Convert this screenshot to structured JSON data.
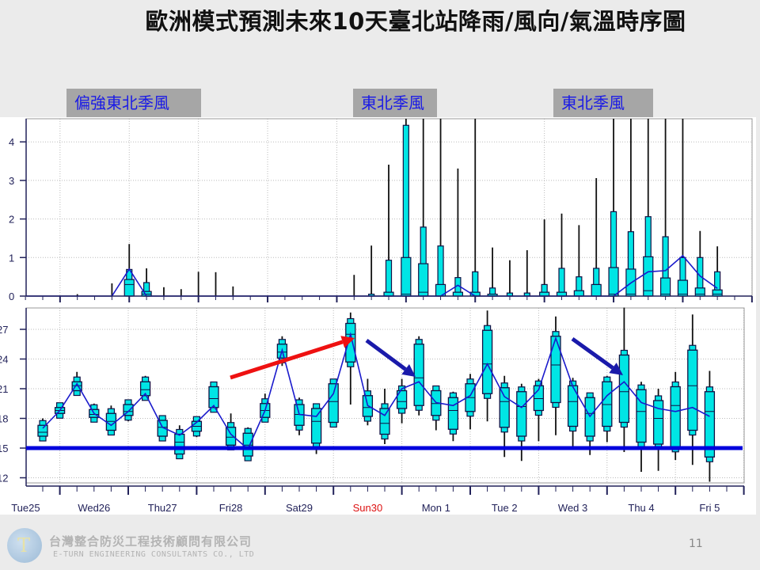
{
  "title": "歐洲模式預測未來10天臺北站降雨/風向/氣溫時序圖",
  "annotations": {
    "wind_labels": [
      "偏強東北季風",
      "東北季風",
      "東北季風"
    ]
  },
  "footer": {
    "company_cn": "台灣整合防災工程技術顧問有限公司",
    "company_en": "E-TURN ENGINEERING CONSULTANTS CO., LTD",
    "page_number": "11"
  },
  "colors": {
    "box_fill": "#00e5e5",
    "mean_line": "#1a1acc",
    "threshold_line": "#0000dd",
    "warming_arrow": "#ee1111",
    "cooling_arrow": "#1a1aaa",
    "highlight_day": "#dd1111"
  },
  "chart_data": [
    {
      "type": "box",
      "ylim": [
        0,
        4.6
      ],
      "yticks": [
        "0",
        "1",
        "2",
        "3",
        "4"
      ],
      "grid": true,
      "x_ticks": [
        "Tue25",
        "Wed26",
        "Thu27",
        "Fri28",
        "Sat29",
        "Sun30",
        "Mon 1",
        "Tue 2",
        "Wed 3",
        "Thu 4",
        "Fri 5"
      ],
      "max": [
        null,
        null,
        0.05,
        null,
        0.33,
        1.35,
        0.72,
        0.23,
        0.18,
        0.63,
        0.62,
        0.25,
        null,
        null,
        null,
        null,
        null,
        null,
        0.55,
        1.31,
        3.41,
        5,
        5,
        5,
        3.31,
        5,
        1.26,
        0.93,
        1.19,
        1.99,
        2.14,
        1.84,
        3.06,
        5,
        5,
        5,
        5,
        5,
        1.69,
        1.29
      ],
      "p90": [
        null,
        null,
        0,
        null,
        0,
        0.69,
        0.35,
        0.02,
        0,
        0,
        0.02,
        0,
        null,
        null,
        null,
        null,
        null,
        null,
        0,
        0.05,
        0.93,
        4.43,
        1.79,
        1.3,
        0.48,
        0.63,
        0.21,
        0.08,
        0.08,
        0.3,
        0.72,
        0.5,
        0.72,
        2.19,
        1.67,
        2.06,
        1.54,
        1.0,
        1.0,
        0.63
      ],
      "p75": [
        null,
        null,
        0,
        null,
        0,
        0.43,
        0.12,
        0,
        0,
        0,
        0,
        0,
        null,
        null,
        null,
        null,
        null,
        null,
        0,
        0,
        0.1,
        1.0,
        0.84,
        0.3,
        0.1,
        0.1,
        0.05,
        0.02,
        0.02,
        0.1,
        0.1,
        0.14,
        0.3,
        0.74,
        0.7,
        1.02,
        0.47,
        0.41,
        0.21,
        0.16
      ],
      "median": [
        null,
        null,
        0,
        null,
        0,
        0.3,
        0.05,
        0,
        0,
        0,
        0,
        0,
        null,
        null,
        null,
        null,
        null,
        null,
        0,
        0,
        0,
        0.05,
        0.1,
        0,
        0,
        0,
        0,
        0,
        0,
        0,
        0,
        0,
        0,
        0.05,
        0.05,
        0.14,
        0.05,
        0.05,
        0.05,
        0.05
      ],
      "mean": [
        0,
        0,
        0,
        0,
        0,
        0.7,
        0,
        0,
        0,
        0,
        0,
        0,
        0,
        0,
        0,
        0,
        0,
        0,
        0,
        0,
        0,
        0,
        0,
        0,
        0.28,
        0,
        0,
        0,
        0,
        0,
        0,
        0,
        0,
        0,
        0.34,
        0.63,
        0.66,
        1.05,
        0.52,
        0.2
      ]
    },
    {
      "type": "box",
      "ylim": [
        11,
        29.5
      ],
      "yticks": [
        "12",
        "15",
        "18",
        "21",
        "24",
        "27"
      ],
      "grid": true,
      "reference_line": 15,
      "x_ticks": [
        "Tue25",
        "Wed26",
        "Thu27",
        "Fri28",
        "Sat29",
        "Sun30",
        "Mon 1",
        "Tue 2",
        "Wed 3",
        "Thu 4",
        "Fri 5"
      ],
      "highlight_tick": "Sun30",
      "min": [
        15.7,
        18.1,
        20.5,
        17.6,
        16.3,
        17.7,
        20.3,
        16.0,
        14.1,
        16.1,
        18.8,
        15.2,
        13.9,
        18.0,
        23.3,
        16.3,
        14.4,
        17.2,
        19.4,
        17.3,
        15.4,
        17.5,
        18.3,
        16.8,
        15.7,
        16.9,
        17.7,
        14.1,
        13.7,
        15.7,
        16.3,
        15.1,
        14.3,
        15.6,
        14.6,
        12.6,
        12.7,
        13.8,
        13.3,
        11.6
      ],
      "q1": [
        16.2,
        18.5,
        20.8,
        18.1,
        16.8,
        18.3,
        20.3,
        16.2,
        14.4,
        16.7,
        19.1,
        15.3,
        14.2,
        18.1,
        24.1,
        17.3,
        15.5,
        17.6,
        23.7,
        18.2,
        16.4,
        19.0,
        19.3,
        18.3,
        16.9,
        18.7,
        20.5,
        17.1,
        16.2,
        18.8,
        19.6,
        17.2,
        16.2,
        17.2,
        17.6,
        15.6,
        15.4,
        15.1,
        16.8,
        14.1
      ],
      "median": [
        16.6,
        18.8,
        21.3,
        18.4,
        17.7,
        18.7,
        20.9,
        17.1,
        15.6,
        17.2,
        20.0,
        16.1,
        15.3,
        18.8,
        24.7,
        18.4,
        17.7,
        19.7,
        26.5,
        19.1,
        17.5,
        19.7,
        22.1,
        19.5,
        18.8,
        20.1,
        23.5,
        19.7,
        19.2,
        20.0,
        23.4,
        19.7,
        18.5,
        19.4,
        20.7,
        18.7,
        18.0,
        19.3,
        21.3,
        18.7
      ],
      "q3": [
        17.3,
        19.1,
        21.7,
        18.9,
        18.5,
        19.4,
        21.7,
        17.8,
        16.4,
        17.7,
        21.2,
        17.1,
        16.5,
        19.5,
        25.5,
        19.4,
        19.0,
        21.5,
        27.6,
        20.3,
        19.0,
        20.8,
        25.5,
        20.8,
        20.1,
        21.5,
        26.9,
        21.1,
        20.7,
        21.3,
        26.3,
        21.3,
        20.1,
        21.7,
        24.4,
        20.9,
        19.8,
        21.2,
        24.9,
        20.7
      ],
      "max": [
        18.0,
        19.3,
        22.7,
        19.5,
        19.3,
        19.6,
        22.3,
        18.2,
        17.3,
        18.2,
        21.3,
        18.5,
        17.1,
        20.5,
        26.3,
        20.1,
        19.5,
        21.7,
        28.7,
        22.0,
        21.0,
        22.0,
        26.3,
        21.2,
        20.7,
        22.5,
        28.9,
        22.3,
        21.5,
        22.0,
        28.3,
        22.1,
        20.1,
        22.3,
        29.2,
        21.7,
        21.0,
        22.7,
        28.5,
        22.8
      ],
      "mean": [
        17.0,
        18.8,
        21.5,
        18.5,
        17.3,
        18.7,
        20.5,
        17.1,
        16.3,
        17.6,
        19.3,
        16.4,
        14.9,
        18.8,
        24.9,
        18.4,
        18.2,
        20.5,
        26.5,
        19.3,
        18.3,
        21.0,
        21.7,
        19.6,
        19.3,
        20.3,
        23.5,
        20.2,
        19.1,
        20.9,
        26.1,
        21.2,
        18.2,
        20.3,
        21.7,
        19.6,
        19.0,
        18.7,
        19.1,
        18.2
      ]
    }
  ]
}
